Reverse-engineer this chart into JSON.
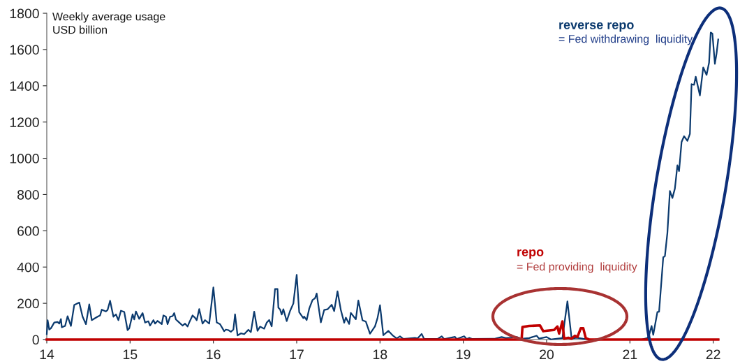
{
  "chart_data": {
    "type": "line",
    "xlim": [
      14,
      22.07
    ],
    "xticks": [
      14,
      15,
      16,
      17,
      18,
      19,
      20,
      21,
      22
    ],
    "ylim": [
      0,
      1800
    ],
    "yticks": [
      0,
      200,
      400,
      600,
      800,
      1000,
      1200,
      1400,
      1600,
      1800
    ],
    "grid": false,
    "legend": false,
    "marker": "none",
    "line_style": "solid",
    "annotations": [
      "Weekly average usage",
      "USD billion",
      "= Fed withdrawing  liquidity",
      "= Fed providing  liquidity"
    ],
    "series": [
      {
        "name": "reverse repo",
        "color": "#0b3a6e",
        "x": [
          14.0,
          14.01,
          14.03,
          14.05,
          14.09,
          14.13,
          14.15,
          14.17,
          14.18,
          14.22,
          14.25,
          14.29,
          14.33,
          14.39,
          14.43,
          14.47,
          14.51,
          14.54,
          14.61,
          14.64,
          14.66,
          14.71,
          14.73,
          14.76,
          14.8,
          14.83,
          14.86,
          14.89,
          14.93,
          14.97,
          14.99,
          15.03,
          15.05,
          15.07,
          15.11,
          15.15,
          15.18,
          15.22,
          15.24,
          15.28,
          15.3,
          15.33,
          15.38,
          15.4,
          15.43,
          15.45,
          15.48,
          15.51,
          15.53,
          15.55,
          15.59,
          15.63,
          15.66,
          15.69,
          15.71,
          15.75,
          15.78,
          15.8,
          15.83,
          15.87,
          15.9,
          15.95,
          16.0,
          16.04,
          16.08,
          16.13,
          16.15,
          16.18,
          16.21,
          16.24,
          16.26,
          16.29,
          16.33,
          16.37,
          16.42,
          16.45,
          16.49,
          16.53,
          16.56,
          16.61,
          16.64,
          16.67,
          16.7,
          16.74,
          16.77,
          16.78,
          16.8,
          16.82,
          16.84,
          16.88,
          16.92,
          16.96,
          17.0,
          17.03,
          17.08,
          17.09,
          17.12,
          17.15,
          17.19,
          17.22,
          17.24,
          17.29,
          17.33,
          17.37,
          17.42,
          17.45,
          17.49,
          17.53,
          17.57,
          17.59,
          17.63,
          17.65,
          17.71,
          17.74,
          17.79,
          17.83,
          17.88,
          17.94,
          17.97,
          18.0,
          18.04,
          18.1,
          18.15,
          18.2,
          18.24,
          18.28,
          18.42,
          18.45,
          18.5,
          18.53,
          18.69,
          18.74,
          18.77,
          18.9,
          18.92,
          19.01,
          19.04,
          19.07,
          19.11,
          19.37,
          19.46,
          19.51,
          19.57,
          19.64,
          19.7,
          19.79,
          19.88,
          19.91,
          20.0,
          20.05,
          20.19,
          20.25,
          20.3,
          20.36,
          20.44,
          20.53,
          21.14,
          21.21,
          21.23,
          21.26,
          21.28,
          21.33,
          21.35,
          21.38,
          21.4,
          21.42,
          21.45,
          21.48,
          21.51,
          21.54,
          21.57,
          21.59,
          21.62,
          21.65,
          21.69,
          21.72,
          21.74,
          21.77,
          21.79,
          21.84,
          21.88,
          21.92,
          21.95,
          21.97,
          21.99,
          22.02,
          22.04,
          22.06
        ],
        "values": [
          30,
          107,
          55,
          62,
          94,
          97,
          88,
          113,
          68,
          75,
          129,
          75,
          191,
          204,
          126,
          85,
          194,
          107,
          126,
          133,
          165,
          155,
          163,
          214,
          126,
          139,
          107,
          159,
          152,
          52,
          62,
          139,
          111,
          155,
          114,
          146,
          94,
          101,
          77,
          107,
          88,
          103,
          85,
          133,
          126,
          85,
          126,
          129,
          146,
          111,
          94,
          77,
          88,
          72,
          94,
          133,
          120,
          107,
          168,
          88,
          107,
          88,
          288,
          94,
          85,
          46,
          55,
          52,
          43,
          55,
          139,
          23,
          34,
          30,
          54,
          41,
          154,
          48,
          71,
          60,
          93,
          108,
          73,
          279,
          279,
          176,
          167,
          138,
          167,
          102,
          157,
          199,
          357,
          151,
          118,
          127,
          108,
          170,
          218,
          228,
          254,
          95,
          163,
          167,
          192,
          157,
          266,
          163,
          93,
          121,
          86,
          147,
          112,
          215,
          106,
          99,
          32,
          73,
          118,
          189,
          24,
          48,
          24,
          6,
          18,
          3,
          9,
          6,
          31,
          3,
          3,
          18,
          3,
          15,
          3,
          18,
          3,
          9,
          3,
          4,
          14,
          8,
          10,
          14,
          4,
          8,
          21,
          5,
          14,
          1,
          8,
          211,
          5,
          10,
          4,
          0,
          0,
          8,
          23,
          75,
          26,
          152,
          154,
          332,
          454,
          460,
          589,
          820,
          781,
          833,
          961,
          929,
          1090,
          1122,
          1096,
          1135,
          1409,
          1405,
          1450,
          1347,
          1501,
          1460,
          1527,
          1694,
          1688,
          1521,
          1578,
          1656
        ]
      },
      {
        "name": "repo",
        "color": "#c00000",
        "x": [
          14.0,
          19.7,
          19.71,
          19.79,
          19.92,
          19.96,
          20.01,
          20.09,
          20.13,
          20.15,
          20.19,
          20.21,
          20.26,
          20.3,
          20.34,
          20.37,
          20.41,
          20.44,
          20.47,
          20.51,
          22.06
        ],
        "values": [
          0,
          0,
          69,
          75,
          78,
          46,
          49,
          53,
          72,
          33,
          100,
          5,
          10,
          5,
          21,
          14,
          62,
          62,
          8,
          0,
          0
        ]
      }
    ]
  }
}
